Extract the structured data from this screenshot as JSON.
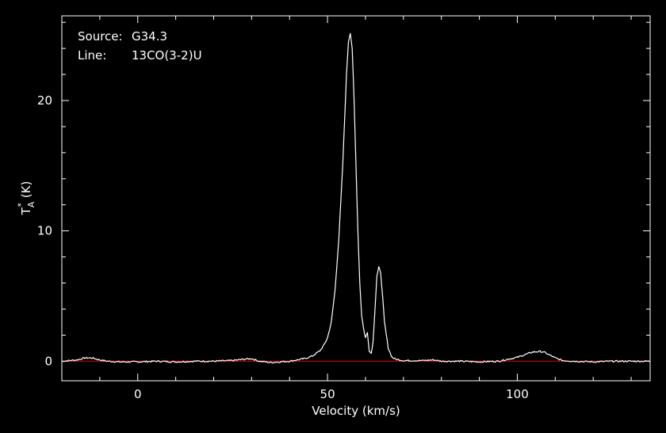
{
  "chart_data": {
    "type": "line",
    "title": "",
    "annotations": {
      "source_label": "Source:",
      "source_value": "G34.3",
      "line_label": "Line:",
      "line_value": "13CO(3-2)U"
    },
    "xlabel": "Velocity (km/s)",
    "ylabel": {
      "base": "T",
      "superscript": "*",
      "subscript": "A",
      "unit": "(K)"
    },
    "xlim": [
      -20,
      135
    ],
    "ylim": [
      -1.5,
      26.5
    ],
    "x_ticks": [
      0,
      50,
      100
    ],
    "x_tick_labels": [
      "0",
      "50",
      "100"
    ],
    "y_ticks": [
      0,
      10,
      20
    ],
    "y_tick_labels": [
      "0",
      "10",
      "20"
    ],
    "grid": false,
    "colors": {
      "background": "#000000",
      "spectrum": "#ffffff",
      "baseline": "#e00000",
      "axes": "#ffffff"
    },
    "series": [
      {
        "x": [
          -20,
          -16,
          -14,
          -12,
          -10,
          -8,
          -5,
          0,
          5,
          10,
          15,
          20,
          25,
          28,
          30,
          32,
          35,
          40,
          44,
          46,
          47,
          48,
          49,
          50,
          51,
          52,
          53,
          54,
          54.5,
          55,
          55.5,
          56,
          56.5,
          57,
          57.5,
          58,
          58.5,
          59,
          59.5,
          60,
          60.5,
          61,
          61.5,
          62,
          62.5,
          63,
          63.5,
          64,
          64.5,
          65,
          66,
          67,
          68,
          70,
          75,
          78,
          80,
          85,
          90,
          95,
          100,
          102,
          104,
          106,
          107,
          108,
          110,
          112,
          115,
          120,
          125,
          130,
          135
        ],
        "values": [
          0.0,
          0.1,
          0.25,
          0.25,
          0.1,
          0.0,
          -0.05,
          -0.05,
          0.0,
          -0.05,
          0.0,
          0.0,
          0.05,
          0.15,
          0.2,
          0.0,
          -0.1,
          0.0,
          0.2,
          0.4,
          0.6,
          0.8,
          1.2,
          1.8,
          3.0,
          5.5,
          9.5,
          15.0,
          18.5,
          22.0,
          24.5,
          25.2,
          24.0,
          20.0,
          15.0,
          10.0,
          6.0,
          3.5,
          2.5,
          1.8,
          2.2,
          0.8,
          0.6,
          1.5,
          4.0,
          6.5,
          7.2,
          6.8,
          5.0,
          3.0,
          1.0,
          0.3,
          0.15,
          0.05,
          0.05,
          0.1,
          0.0,
          0.0,
          -0.05,
          0.0,
          0.3,
          0.5,
          0.7,
          0.75,
          0.7,
          0.55,
          0.25,
          0.05,
          0.0,
          -0.05,
          0.0,
          0.0,
          0.0
        ]
      }
    ],
    "baseline": 0
  }
}
